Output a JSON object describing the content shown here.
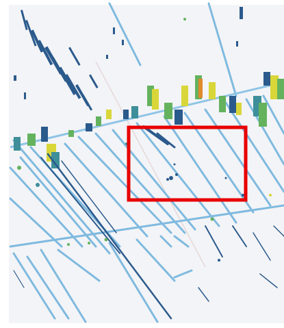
{
  "map": {
    "kind": "classified raster overlay",
    "colors": {
      "background": "#f3f4f7",
      "canal": "#7fbadf",
      "dark_blue": "#2b5a8c",
      "teal": "#3e8f9a",
      "green": "#64b25e",
      "yellow": "#d9d63a",
      "orange": "#e08a2c",
      "highlight_box": "#e80000"
    },
    "legend": [],
    "highlight": {
      "shape": "rectangle",
      "color": "#e80000"
    }
  }
}
